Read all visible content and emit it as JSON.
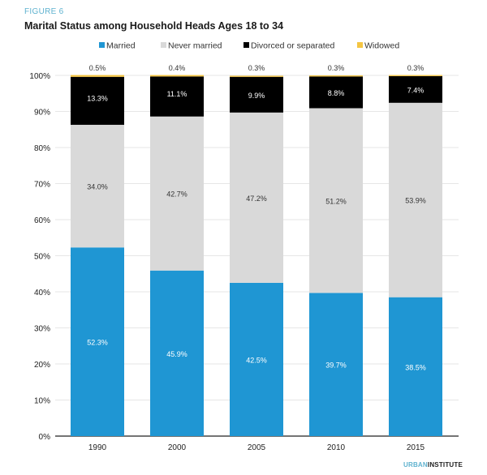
{
  "figure_label": "FIGURE 6",
  "logo": {
    "part1": "URBAN",
    "part2": "INSTITUTE"
  },
  "chart_data": {
    "type": "bar",
    "stacked": true,
    "title": "Marital Status among Household Heads Ages 18 to 34",
    "xlabel": "",
    "ylabel": "",
    "ylim": [
      0,
      100
    ],
    "yticks": [
      "0%",
      "10%",
      "20%",
      "30%",
      "40%",
      "50%",
      "60%",
      "70%",
      "80%",
      "90%",
      "100%"
    ],
    "categories": [
      "1990",
      "2000",
      "2005",
      "2010",
      "2015"
    ],
    "legend_position": "top",
    "series": [
      {
        "name": "Married",
        "color": "#1f96d3",
        "values": [
          52.3,
          45.9,
          42.5,
          39.7,
          38.5
        ],
        "labels": [
          "52.3%",
          "45.9%",
          "42.5%",
          "39.7%",
          "38.5%"
        ]
      },
      {
        "name": "Never married",
        "color": "#d9d9d9",
        "values": [
          34.0,
          42.7,
          47.2,
          51.2,
          53.9
        ],
        "labels": [
          "34.0%",
          "42.7%",
          "47.2%",
          "51.2%",
          "53.9%"
        ]
      },
      {
        "name": "Divorced or separated",
        "color": "#000000",
        "values": [
          13.3,
          11.1,
          9.9,
          8.8,
          7.4
        ],
        "labels": [
          "13.3%",
          "11.1%",
          "9.9%",
          "8.8%",
          "7.4%"
        ]
      },
      {
        "name": "Widowed",
        "color": "#f4c542",
        "values": [
          0.5,
          0.4,
          0.3,
          0.3,
          0.3
        ],
        "labels": [
          "0.5%",
          "0.4%",
          "0.3%",
          "0.3%",
          "0.3%"
        ]
      }
    ]
  }
}
